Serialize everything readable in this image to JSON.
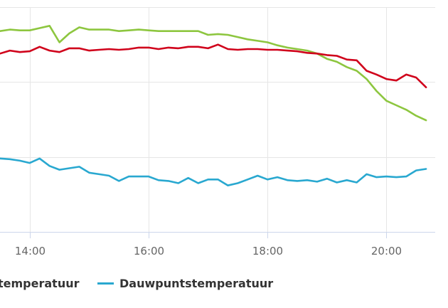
{
  "chart_data": {
    "type": "line",
    "title": "",
    "xlabel": "",
    "ylabel": "",
    "x_start": "13:30",
    "x_interval_minutes": 10,
    "x_ticks": [
      "14:00",
      "16:00",
      "18:00",
      "20:00"
    ],
    "y_gridlines": [
      0,
      10,
      20,
      30
    ],
    "ylim": [
      0,
      30
    ],
    "y_units_note": "relative scale, y-axis labels not visible",
    "grid": true,
    "legend_placement": "bottom",
    "series": [
      {
        "name": "temperatuur",
        "color": "#d0021b",
        "values": [
          23.8,
          24.2,
          24.0,
          24.1,
          24.7,
          24.2,
          24.0,
          24.5,
          24.5,
          24.2,
          24.3,
          24.4,
          24.3,
          24.4,
          24.6,
          24.6,
          24.4,
          24.6,
          24.5,
          24.7,
          24.7,
          24.5,
          25.0,
          24.4,
          24.3,
          24.4,
          24.4,
          24.3,
          24.3,
          24.2,
          24.1,
          23.9,
          23.8,
          23.6,
          23.5,
          23.0,
          22.9,
          21.5,
          21.0,
          20.4,
          20.2,
          21.0,
          20.6,
          19.3
        ]
      },
      {
        "name": "",
        "color": "#8dc63f",
        "values": [
          26.8,
          27.0,
          26.9,
          26.9,
          27.2,
          27.5,
          25.3,
          26.5,
          27.3,
          27.0,
          27.0,
          27.0,
          26.8,
          26.9,
          27.0,
          26.9,
          26.8,
          26.8,
          26.8,
          26.8,
          26.8,
          26.3,
          26.4,
          26.3,
          26.0,
          25.7,
          25.5,
          25.3,
          24.9,
          24.6,
          24.4,
          24.2,
          23.8,
          23.1,
          22.7,
          22.0,
          21.5,
          20.4,
          18.8,
          17.5,
          16.9,
          16.3,
          15.5,
          14.9
        ]
      },
      {
        "name": "Dauwpuntstemperatuur",
        "color": "#29a8d0",
        "values": [
          9.8,
          9.7,
          9.5,
          9.2,
          9.8,
          8.8,
          8.3,
          8.5,
          8.7,
          7.9,
          7.7,
          7.5,
          6.8,
          7.4,
          7.4,
          7.4,
          6.9,
          6.8,
          6.5,
          7.2,
          6.5,
          7.0,
          7.0,
          6.2,
          6.5,
          7.0,
          7.5,
          7.0,
          7.3,
          6.9,
          6.8,
          6.9,
          6.7,
          7.1,
          6.6,
          6.9,
          6.6,
          7.7,
          7.3,
          7.4,
          7.3,
          7.4,
          8.2,
          8.4
        ]
      }
    ]
  },
  "legend": {
    "items": [
      {
        "label": "temperatuur",
        "color": "#d0021b"
      },
      {
        "label": "Dauwpuntstemperatuur",
        "color": "#29a8d0"
      }
    ]
  }
}
